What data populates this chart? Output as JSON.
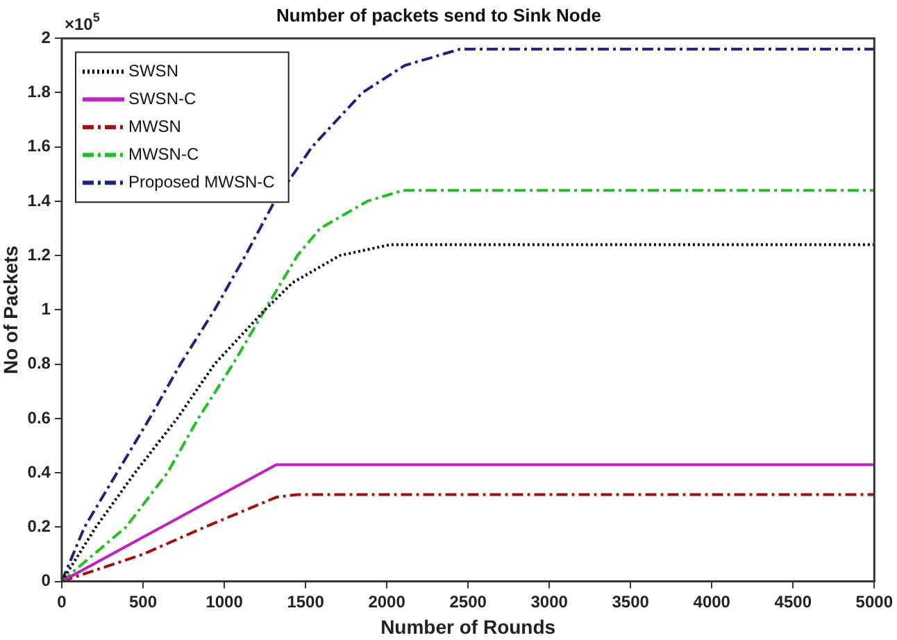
{
  "chart_data": {
    "type": "line",
    "title": "Number of packets send to Sink Node",
    "xlabel": "Number of Rounds",
    "ylabel": "No of Packets",
    "annotations": [
      "×10$^{5}$"
    ],
    "xlim": [
      0,
      5000
    ],
    "xticks": [
      0,
      500,
      1000,
      1500,
      2000,
      2500,
      3000,
      3500,
      4000,
      4500,
      5000
    ],
    "ylim": [
      0,
      2
    ],
    "yticks": [
      0,
      0.2,
      0.4,
      0.6,
      0.8,
      1,
      1.2,
      1.4,
      1.6,
      1.8,
      2
    ],
    "grid": false,
    "legend": "top left",
    "marker": "none",
    "series": [
      {
        "name": "SWSN",
        "color": "#000000",
        "line_style": "dotted",
        "x": [
          0,
          210,
          450,
          710,
          940,
          1250,
          1420,
          1710,
          2020,
          5000
        ],
        "values": [
          0,
          0.2,
          0.4,
          0.6,
          0.8,
          1.0,
          1.1,
          1.2,
          1.24,
          1.24
        ]
      },
      {
        "name": "SWSN-C",
        "color": "#c020c0",
        "line_style": "solid",
        "x": [
          0,
          1320,
          1400,
          5000
        ],
        "values": [
          0,
          0.43,
          0.43,
          0.43
        ]
      },
      {
        "name": "MWSN",
        "color": "#a01010",
        "line_style": "dashed",
        "x": [
          0,
          500,
          880,
          1320,
          1450,
          5000
        ],
        "values": [
          0,
          0.1,
          0.2,
          0.31,
          0.32,
          0.32
        ]
      },
      {
        "name": "MWSN-C",
        "color": "#20c020",
        "line_style": "dashed",
        "x": [
          0,
          395,
          650,
          840,
          1053,
          1250,
          1450,
          1590,
          1880,
          2100,
          5000
        ],
        "values": [
          0,
          0.2,
          0.4,
          0.6,
          0.8,
          1.0,
          1.2,
          1.3,
          1.4,
          1.44,
          1.44
        ]
      },
      {
        "name": "Proposed MWSN-C",
        "color": "#202080",
        "line_style": "dashed",
        "x": [
          0,
          140,
          340,
          540,
          730,
          940,
          1130,
          1310,
          1540,
          1850,
          2110,
          2450,
          5000
        ],
        "values": [
          0,
          0.2,
          0.4,
          0.6,
          0.8,
          1.0,
          1.2,
          1.4,
          1.6,
          1.8,
          1.9,
          1.96,
          1.96
        ]
      }
    ]
  }
}
